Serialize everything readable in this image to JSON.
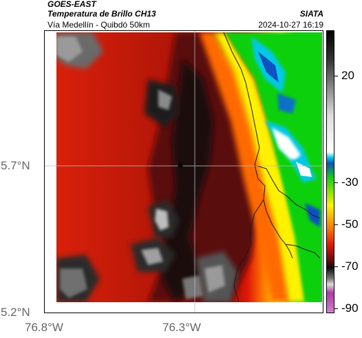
{
  "header": {
    "satellite": "GOES-EAST",
    "product": "Temperatura de Brillo CH13",
    "route": "Vía Medellín - Quibdó 50km",
    "agency": "SIATA",
    "datetime": "2024-10-27 16:19"
  },
  "map": {
    "lat_labels": [
      "5.7°N",
      "5.2°N"
    ],
    "lon_labels": [
      "76.8°W",
      "76.3°W"
    ],
    "marker": "point-marker"
  },
  "colorbar": {
    "labels": [
      "20",
      "-30",
      "-50",
      "-70",
      "-90"
    ],
    "colors": {
      "magenta": "#b03aa8",
      "gray": "#7a7a7a",
      "black": "#0a0a0a",
      "dark_red": "#5a0a08",
      "red": "#e01808",
      "orange": "#ff7a00",
      "yellow": "#fff200",
      "green": "#10d010",
      "cyan": "#00c8e6",
      "blue": "#1050c0",
      "white": "#ffffff"
    }
  }
}
